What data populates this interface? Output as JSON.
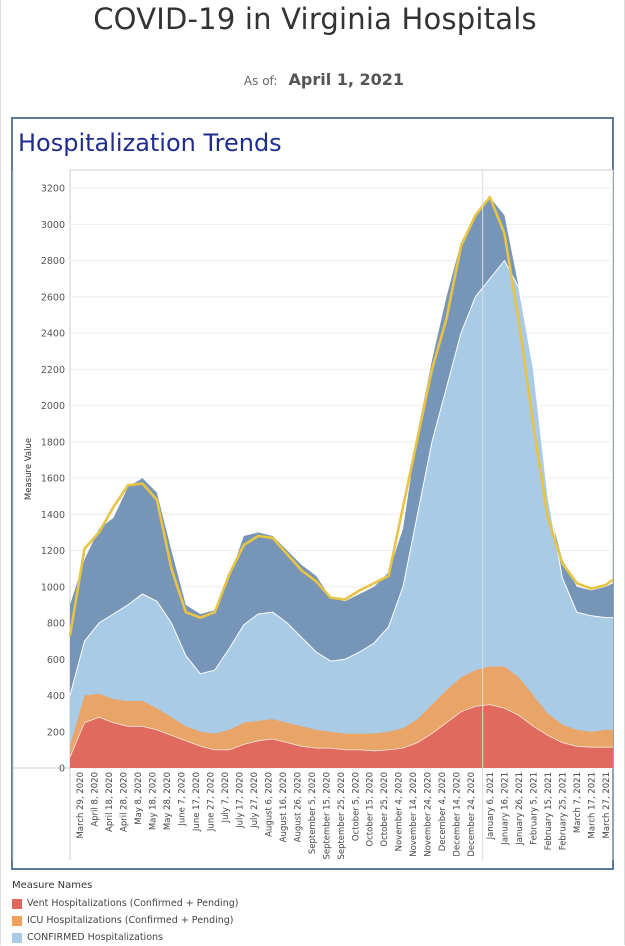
{
  "header": {
    "title": "COVID-19 in Virginia Hospitals",
    "as_of_label": "As of:",
    "as_of_value": "April 1, 2021"
  },
  "panel": {
    "title": "Hospitalization Trends"
  },
  "legend": {
    "title": "Measure Names",
    "items": [
      {
        "label": "Vent Hospitalizations (Confirmed + Pending)",
        "color": "#e0675e"
      },
      {
        "label": "ICU Hospitalizations (Confirmed + Pending)",
        "color": "#f0a05a"
      },
      {
        "label": "CONFIRMED Hospitalizations",
        "color": "#a9cbe6"
      }
    ]
  },
  "chart_data": {
    "type": "area",
    "ylabel": "Measure Value",
    "ylim": [
      0,
      3300
    ],
    "yticks": [
      0,
      200,
      400,
      600,
      800,
      1000,
      1200,
      1400,
      1600,
      1800,
      2000,
      2200,
      2400,
      2600,
      2800,
      3000,
      3200
    ],
    "x_range": [
      "2020-03-22",
      "2021-04-01"
    ],
    "x_ticks": [
      "March 29, 2020",
      "April 8, 2020",
      "April 18, 2020",
      "April 28, 2020",
      "May 8, 2020",
      "May 18, 2020",
      "May 28, 2020",
      "June 7, 2020",
      "June 17, 2020",
      "June 27, 2020",
      "July 7, 2020",
      "July 17, 2020",
      "July 27, 2020",
      "August 6, 2020",
      "August 16, 2020",
      "August 26, 2020",
      "September 5, 2020",
      "September 15, 2020",
      "September 25, 2020",
      "October 5, 2020",
      "October 15, 2020",
      "October 25, 2020",
      "November 4, 2020",
      "November 14, 2020",
      "November 24, 2020",
      "December 4, 2020",
      "December 14, 2020",
      "December 24, 2020",
      "January 6, 2021",
      "January 16, 2021",
      "January 26, 2021",
      "February 5, 2021",
      "February 15, 2021",
      "February 25, 2021",
      "March 7, 2021",
      "March 17, 2021",
      "March 27, 2021"
    ],
    "grid": true,
    "legend_position": "bottom-left",
    "x": [
      "2020-03-22",
      "2020-04-01",
      "2020-04-11",
      "2020-04-21",
      "2020-05-01",
      "2020-05-11",
      "2020-05-21",
      "2020-05-31",
      "2020-06-10",
      "2020-06-20",
      "2020-06-30",
      "2020-07-10",
      "2020-07-20",
      "2020-07-30",
      "2020-08-09",
      "2020-08-19",
      "2020-08-29",
      "2020-09-08",
      "2020-09-18",
      "2020-09-28",
      "2020-10-08",
      "2020-10-18",
      "2020-10-28",
      "2020-11-07",
      "2020-11-17",
      "2020-11-27",
      "2020-12-07",
      "2020-12-17",
      "2020-12-27",
      "2021-01-06",
      "2021-01-16",
      "2021-01-26",
      "2021-02-05",
      "2021-02-15",
      "2021-02-25",
      "2021-03-07",
      "2021-03-17",
      "2021-03-27",
      "2021-04-01"
    ],
    "series": [
      {
        "name": "Vent Hospitalizations (Confirmed + Pending)",
        "color": "#e0675e",
        "values": [
          60,
          250,
          280,
          250,
          230,
          230,
          210,
          180,
          150,
          120,
          100,
          100,
          130,
          150,
          160,
          140,
          120,
          110,
          110,
          100,
          100,
          95,
          100,
          110,
          140,
          190,
          250,
          310,
          340,
          350,
          330,
          290,
          230,
          180,
          140,
          120,
          115,
          115,
          115
        ]
      },
      {
        "name": "ICU Hospitalizations (Confirmed + Pending)",
        "color": "#f0a05a",
        "values": [
          120,
          400,
          410,
          380,
          370,
          370,
          330,
          280,
          230,
          200,
          190,
          210,
          250,
          260,
          270,
          250,
          230,
          210,
          200,
          190,
          190,
          190,
          200,
          220,
          270,
          350,
          430,
          500,
          540,
          560,
          560,
          500,
          400,
          300,
          240,
          210,
          200,
          210,
          210
        ]
      },
      {
        "name": "CONFIRMED Hospitalizations",
        "color": "#a9cbe6",
        "values": [
          400,
          700,
          800,
          850,
          900,
          960,
          920,
          800,
          620,
          520,
          540,
          660,
          790,
          850,
          860,
          800,
          720,
          640,
          590,
          600,
          640,
          690,
          780,
          1000,
          1400,
          1800,
          2100,
          2400,
          2600,
          2700,
          2800,
          2650,
          2200,
          1500,
          1050,
          860,
          840,
          830,
          830
        ]
      },
      {
        "name": "Total Hospitalizations",
        "color": "#6f8fb3",
        "values": [
          900,
          1150,
          1320,
          1380,
          1550,
          1600,
          1520,
          1200,
          900,
          850,
          870,
          1050,
          1280,
          1300,
          1280,
          1200,
          1120,
          1060,
          940,
          920,
          960,
          1000,
          1080,
          1320,
          1850,
          2250,
          2600,
          2900,
          3050,
          3150,
          3050,
          2650,
          2000,
          1450,
          1150,
          1000,
          980,
          1000,
          1020
        ]
      },
      {
        "name": "Trend",
        "color": "#e7c444",
        "values": [
          730,
          1210,
          1300,
          1440,
          1560,
          1570,
          1480,
          1100,
          860,
          830,
          860,
          1070,
          1230,
          1280,
          1270,
          1180,
          1090,
          1030,
          940,
          930,
          980,
          1020,
          1060,
          1440,
          1820,
          2200,
          2480,
          2880,
          3050,
          3150,
          2950,
          2460,
          1890,
          1380,
          1130,
          1020,
          990,
          1010,
          1040
        ]
      }
    ]
  }
}
